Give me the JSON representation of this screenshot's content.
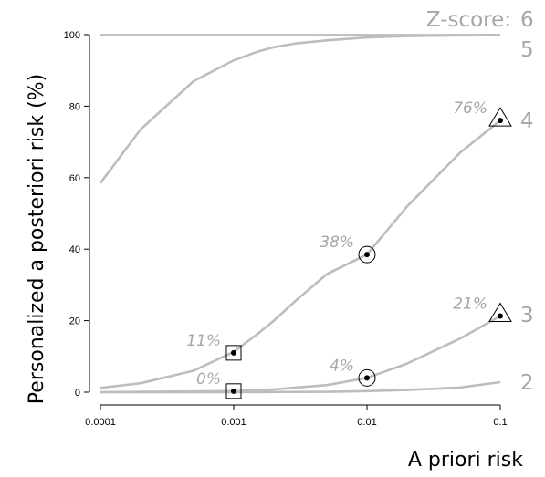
{
  "chart_data": {
    "type": "line",
    "xscale": "log",
    "xlabel": "A priori risk",
    "ylabel": "Personalized a posteriori risk (%)",
    "xlim": [
      0.0001,
      0.1
    ],
    "ylim": [
      0,
      100
    ],
    "x_ticks": [
      0.0001,
      0.001,
      0.01,
      0.1
    ],
    "x_tick_labels": [
      "0.0001",
      "0.001",
      "0.01",
      "0.1"
    ],
    "y_ticks": [
      0,
      20,
      40,
      60,
      80,
      100
    ],
    "y_tick_labels": [
      "0",
      "20",
      "40",
      "60",
      "80",
      "100"
    ],
    "legend_title": "Z-score:",
    "series": [
      {
        "name": "6",
        "x": [
          0.0001,
          0.1
        ],
        "y": [
          99.9,
          99.9
        ]
      },
      {
        "name": "5",
        "x": [
          0.0001,
          0.0002,
          0.0005,
          0.001,
          0.0015,
          0.002,
          0.003,
          0.005,
          0.01,
          0.02,
          0.05,
          0.1
        ],
        "y": [
          58.5,
          73.5,
          87,
          92.8,
          95.2,
          96.5,
          97.6,
          98.4,
          99.2,
          99.6,
          99.8,
          99.9
        ]
      },
      {
        "name": "4",
        "x": [
          0.0001,
          0.0002,
          0.0005,
          0.001,
          0.0015,
          0.002,
          0.003,
          0.005,
          0.01,
          0.02,
          0.05,
          0.1
        ],
        "y": [
          1.2,
          2.5,
          6.0,
          11.3,
          16.2,
          20.0,
          26.0,
          33.0,
          38.5,
          52.0,
          67.0,
          76.0
        ]
      },
      {
        "name": "3",
        "x": [
          0.0001,
          0.001,
          0.002,
          0.005,
          0.01,
          0.02,
          0.05,
          0.1
        ],
        "y": [
          0.0,
          0.3,
          0.8,
          2.0,
          4.0,
          8.0,
          15.0,
          21.3
        ]
      },
      {
        "name": "2",
        "x": [
          0.0001,
          0.001,
          0.005,
          0.01,
          0.02,
          0.05,
          0.1
        ],
        "y": [
          0.0,
          0.0,
          0.1,
          0.3,
          0.6,
          1.3,
          2.8
        ]
      }
    ],
    "markers": [
      {
        "shape": "square",
        "x": 0.001,
        "y": 11.0,
        "label": "11%"
      },
      {
        "shape": "square",
        "x": 0.001,
        "y": 0.3,
        "label": "0%"
      },
      {
        "shape": "circle",
        "x": 0.01,
        "y": 38.5,
        "label": "38%"
      },
      {
        "shape": "circle",
        "x": 0.01,
        "y": 4.0,
        "label": "4%"
      },
      {
        "shape": "triangle",
        "x": 0.1,
        "y": 76.0,
        "label": "76%"
      },
      {
        "shape": "triangle",
        "x": 0.1,
        "y": 21.3,
        "label": "21%"
      }
    ],
    "colors": {
      "curve": "#bdbdbd",
      "label": "#a6a6a6",
      "axis": "#000000",
      "marker": "#000000"
    }
  }
}
